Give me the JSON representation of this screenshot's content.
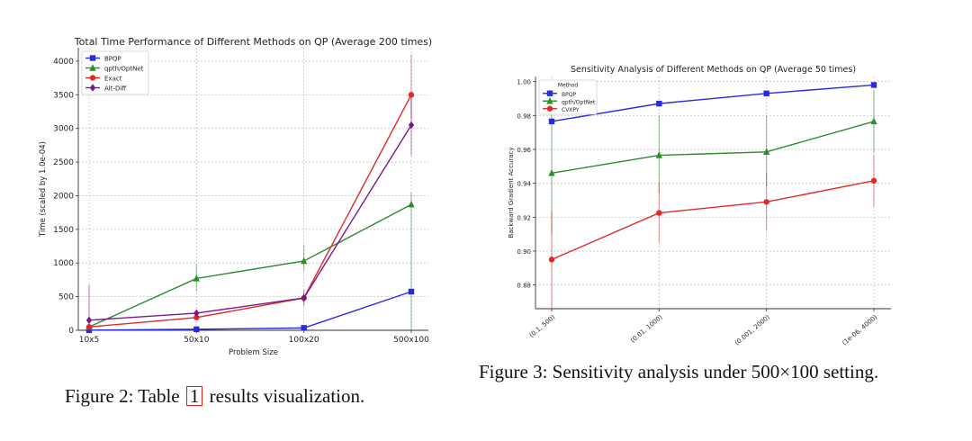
{
  "chart_data": [
    {
      "type": "line",
      "title": "Total Time Performance of Different Methods on QP (Average 200 times)",
      "xlabel": "Problem Size",
      "ylabel": "Time (scaled by 1.0e-04)",
      "categories": [
        "10x5",
        "50x10",
        "100x20",
        "500x100"
      ],
      "ylim": [
        0,
        4200
      ],
      "yticks": [
        0,
        500,
        1000,
        1500,
        2000,
        2500,
        3000,
        3500,
        4000
      ],
      "grid": true,
      "legend": "top-left",
      "series": [
        {
          "name": "BPQP",
          "color": "#2a2ae0",
          "marker": "square",
          "values": [
            2,
            15,
            35,
            575
          ]
        },
        {
          "name": "qpth/OptNet",
          "color": "#2e8b2e",
          "marker": "triangle",
          "values": [
            50,
            770,
            1030,
            1870
          ],
          "err_low": [
            40,
            580,
            880,
            0
          ],
          "err_high": [
            60,
            980,
            1270,
            2050
          ]
        },
        {
          "name": "Exact",
          "color": "#e02a2a",
          "marker": "circle",
          "values": [
            50,
            190,
            480,
            3500
          ],
          "err_low": [
            40,
            150,
            420,
            3150
          ],
          "err_high": [
            60,
            230,
            560,
            4100
          ]
        },
        {
          "name": "Alt-Diff",
          "color": "#7a1a8a",
          "marker": "diamond",
          "values": [
            150,
            255,
            480,
            3050
          ],
          "err_low": [
            0,
            220,
            360,
            2600
          ],
          "err_high": [
            680,
            300,
            600,
            3500
          ]
        }
      ]
    },
    {
      "type": "line",
      "title": "Sensitivity Analysis of Different Methods on QP (Average 50 times)",
      "xlabel": "",
      "ylabel": "Backward Gradient Accuracy",
      "legend_title": "Method",
      "categories": [
        "(0.1, 500)",
        "(0.01, 1000)",
        "(0.001, 2000)",
        "(1e-06, 4000)"
      ],
      "ylim": [
        0.866,
        1.003
      ],
      "yticks": [
        0.88,
        0.9,
        0.92,
        0.94,
        0.96,
        0.98,
        1.0
      ],
      "grid": true,
      "legend": "top-left",
      "series": [
        {
          "name": "BPQP",
          "color": "#2a2ae0",
          "marker": "square",
          "values": [
            0.9765,
            0.987,
            0.993,
            0.998
          ]
        },
        {
          "name": "qpth/OptNet",
          "color": "#2e8b2e",
          "marker": "triangle",
          "values": [
            0.946,
            0.9565,
            0.9585,
            0.9765
          ],
          "err_low": [
            0.91,
            0.934,
            0.938,
            0.958
          ],
          "err_high": [
            0.984,
            0.98,
            0.98,
            0.995
          ]
        },
        {
          "name": "CVXPY",
          "color": "#e02a2a",
          "marker": "circle",
          "values": [
            0.895,
            0.9225,
            0.929,
            0.9415
          ],
          "err_low": [
            0.866,
            0.905,
            0.912,
            0.926
          ],
          "err_high": [
            0.924,
            0.94,
            0.946,
            0.957
          ]
        }
      ]
    }
  ],
  "captions": {
    "fig2_prefix": "Figure 2: Table",
    "fig2_ref": "1",
    "fig2_suffix": "results visualization.",
    "fig3": "Figure 3: Sensitivity analysis under 500×100 setting."
  }
}
